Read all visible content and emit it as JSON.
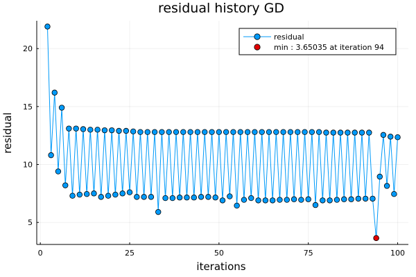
{
  "chart_data": {
    "type": "line",
    "title": "residual history GD",
    "xlabel": "iterations",
    "ylabel": "residual",
    "xlim": [
      -1,
      103
    ],
    "ylim": [
      3.1,
      22.4
    ],
    "xticks": [
      0,
      25,
      50,
      75,
      100
    ],
    "yticks": [
      5,
      10,
      15,
      20
    ],
    "grid": true,
    "legend_position": "top-right",
    "series": [
      {
        "name": "residual",
        "color": "#009AF9",
        "x": [
          2,
          3,
          4,
          5,
          6,
          7,
          8,
          9,
          10,
          11,
          12,
          13,
          14,
          15,
          16,
          17,
          18,
          19,
          20,
          21,
          22,
          23,
          24,
          25,
          26,
          27,
          28,
          29,
          30,
          31,
          32,
          33,
          34,
          35,
          36,
          37,
          38,
          39,
          40,
          41,
          42,
          43,
          44,
          45,
          46,
          47,
          48,
          49,
          50,
          51,
          52,
          53,
          54,
          55,
          56,
          57,
          58,
          59,
          60,
          61,
          62,
          63,
          64,
          65,
          66,
          67,
          68,
          69,
          70,
          71,
          72,
          73,
          74,
          75,
          76,
          77,
          78,
          79,
          80,
          81,
          82,
          83,
          84,
          85,
          86,
          87,
          88,
          89,
          90,
          91,
          92,
          93,
          94,
          95,
          96,
          97,
          98,
          99,
          100
        ],
        "values": [
          21.9,
          10.8,
          16.2,
          9.4,
          14.9,
          8.2,
          13.1,
          7.3,
          13.1,
          7.4,
          13.05,
          7.45,
          13.0,
          7.5,
          13.0,
          7.2,
          12.95,
          7.3,
          12.95,
          7.4,
          12.9,
          7.5,
          12.9,
          7.6,
          12.85,
          7.2,
          12.8,
          7.2,
          12.8,
          7.2,
          12.8,
          5.9,
          12.8,
          7.1,
          12.8,
          7.1,
          12.8,
          7.15,
          12.8,
          7.15,
          12.8,
          7.15,
          12.8,
          7.2,
          12.8,
          7.2,
          12.8,
          7.15,
          12.8,
          6.9,
          12.8,
          7.25,
          12.8,
          6.45,
          12.8,
          6.95,
          12.8,
          7.1,
          12.8,
          6.9,
          12.8,
          6.9,
          12.8,
          6.9,
          12.8,
          6.95,
          12.8,
          6.95,
          12.8,
          7.0,
          12.8,
          6.95,
          12.8,
          7.0,
          12.8,
          6.5,
          12.8,
          6.9,
          12.75,
          6.9,
          12.75,
          6.95,
          12.75,
          7.0,
          12.75,
          7.0,
          12.75,
          7.05,
          12.75,
          7.05,
          12.75,
          7.05,
          3.65,
          8.95,
          12.55,
          8.15,
          12.4,
          7.45,
          12.35
        ]
      },
      {
        "name": "min : 3.65035 at iteration 94",
        "color": "#E20000",
        "x": [
          94
        ],
        "values": [
          3.65035
        ]
      }
    ]
  }
}
